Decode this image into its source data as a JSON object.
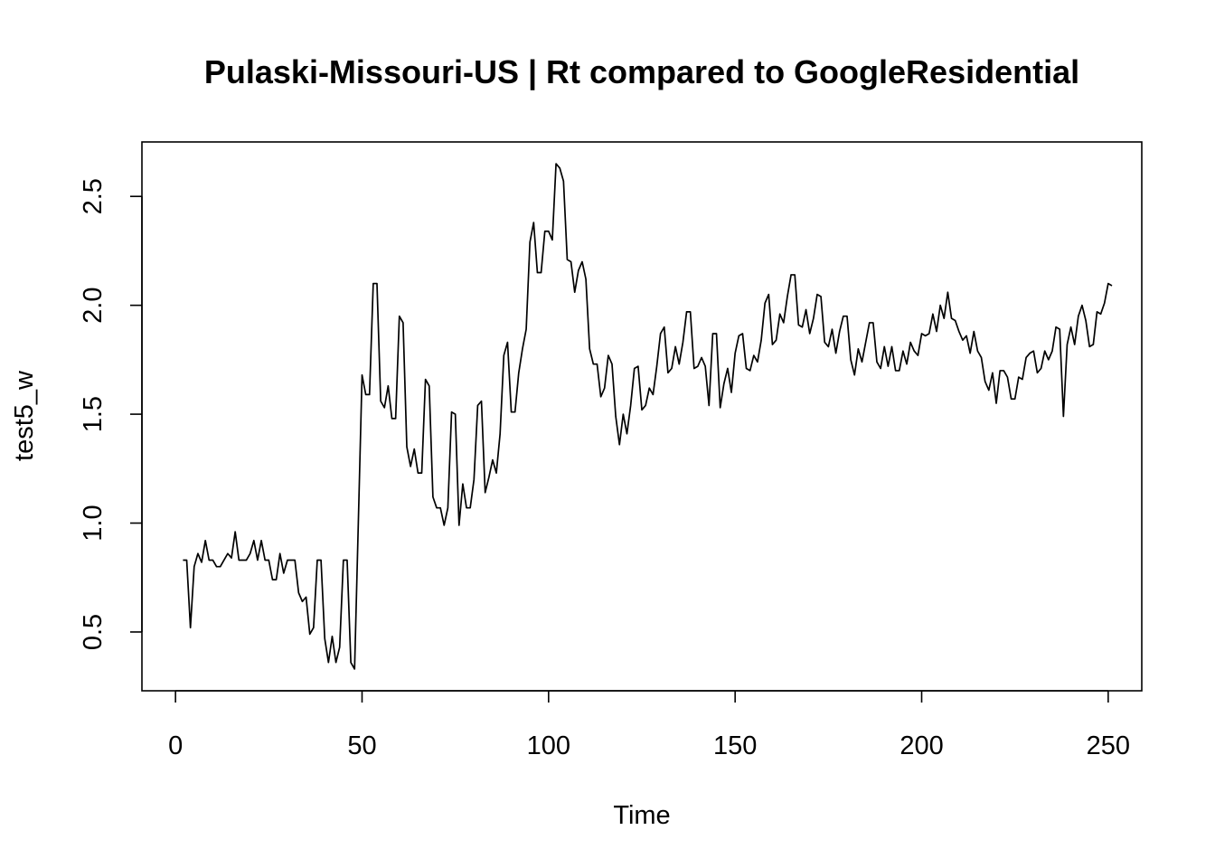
{
  "chart_data": {
    "type": "line",
    "title": "Pulaski-Missouri-US | Rt compared to GoogleResidential",
    "xlabel": "Time",
    "ylabel": "test5_w",
    "xlim": [
      -9,
      259
    ],
    "ylim": [
      0.23,
      2.75
    ],
    "xticks": [
      0,
      50,
      100,
      150,
      200,
      250
    ],
    "yticks": [
      0.5,
      1.0,
      1.5,
      2.0,
      2.5
    ],
    "xtick_labels": [
      "0",
      "50",
      "100",
      "150",
      "200",
      "250"
    ],
    "ytick_labels": [
      "0.5",
      "1.0",
      "1.5",
      "2.0",
      "2.5"
    ],
    "grid": false,
    "legend": "none",
    "line_color": "#000000",
    "series": [
      {
        "x_start": 2,
        "x_step": 1,
        "values": [
          0.83,
          0.83,
          0.52,
          0.8,
          0.86,
          0.82,
          0.92,
          0.83,
          0.83,
          0.8,
          0.8,
          0.83,
          0.86,
          0.84,
          0.96,
          0.83,
          0.83,
          0.83,
          0.86,
          0.92,
          0.83,
          0.92,
          0.83,
          0.83,
          0.74,
          0.74,
          0.86,
          0.77,
          0.83,
          0.83,
          0.83,
          0.68,
          0.64,
          0.66,
          0.49,
          0.52,
          0.83,
          0.83,
          0.47,
          0.36,
          0.48,
          0.36,
          0.43,
          0.83,
          0.83,
          0.36,
          0.33,
          1.0,
          1.68,
          1.59,
          1.59,
          2.1,
          2.1,
          1.56,
          1.53,
          1.63,
          1.48,
          1.48,
          1.95,
          1.92,
          1.35,
          1.26,
          1.34,
          1.23,
          1.23,
          1.66,
          1.63,
          1.12,
          1.07,
          1.07,
          0.99,
          1.07,
          1.51,
          1.5,
          0.99,
          1.18,
          1.07,
          1.07,
          1.2,
          1.54,
          1.56,
          1.14,
          1.21,
          1.29,
          1.23,
          1.41,
          1.77,
          1.83,
          1.51,
          1.51,
          1.69,
          1.8,
          1.89,
          2.29,
          2.38,
          2.15,
          2.15,
          2.34,
          2.34,
          2.3,
          2.65,
          2.63,
          2.57,
          2.21,
          2.2,
          2.06,
          2.16,
          2.2,
          2.12,
          1.8,
          1.73,
          1.73,
          1.58,
          1.62,
          1.77,
          1.73,
          1.49,
          1.36,
          1.5,
          1.41,
          1.54,
          1.71,
          1.72,
          1.52,
          1.54,
          1.62,
          1.59,
          1.72,
          1.87,
          1.9,
          1.69,
          1.71,
          1.81,
          1.73,
          1.83,
          1.97,
          1.97,
          1.71,
          1.72,
          1.76,
          1.72,
          1.54,
          1.87,
          1.87,
          1.53,
          1.64,
          1.71,
          1.6,
          1.78,
          1.86,
          1.87,
          1.71,
          1.7,
          1.77,
          1.74,
          1.84,
          2.01,
          2.05,
          1.82,
          1.84,
          1.96,
          1.92,
          2.04,
          2.14,
          2.14,
          1.91,
          1.9,
          1.98,
          1.87,
          1.94,
          2.05,
          2.04,
          1.83,
          1.81,
          1.89,
          1.78,
          1.88,
          1.95,
          1.95,
          1.75,
          1.68,
          1.8,
          1.74,
          1.83,
          1.92,
          1.92,
          1.74,
          1.71,
          1.81,
          1.72,
          1.81,
          1.7,
          1.7,
          1.79,
          1.73,
          1.83,
          1.79,
          1.77,
          1.87,
          1.86,
          1.87,
          1.96,
          1.88,
          2.0,
          1.94,
          2.06,
          1.94,
          1.93,
          1.88,
          1.84,
          1.86,
          1.78,
          1.88,
          1.79,
          1.76,
          1.65,
          1.61,
          1.69,
          1.55,
          1.7,
          1.7,
          1.67,
          1.57,
          1.57,
          1.67,
          1.66,
          1.76,
          1.78,
          1.79,
          1.69,
          1.71,
          1.79,
          1.75,
          1.79,
          1.9,
          1.89,
          1.49,
          1.82,
          1.9,
          1.82,
          1.95,
          2.0,
          1.93,
          1.81,
          1.82,
          1.97,
          1.96,
          2.01,
          2.1,
          2.09
        ]
      }
    ]
  }
}
